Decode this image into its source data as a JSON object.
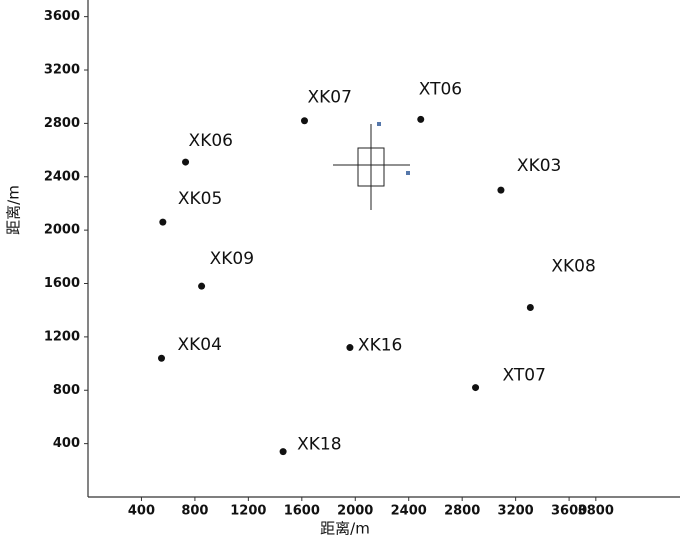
{
  "chart_data": {
    "type": "scatter",
    "x_label": "距离/m",
    "y_label": "距离/m",
    "labels": [
      "XK07",
      "XT06",
      "XK06",
      "XK03",
      "XK05",
      "XK09",
      "XK08",
      "XK04",
      "XK16",
      "XT07",
      "XK18"
    ],
    "x": [
      1620,
      2490,
      730,
      3090,
      560,
      850,
      3310,
      550,
      1960,
      2900,
      1460
    ],
    "y": [
      2820,
      2830,
      2510,
      2300,
      2060,
      1580,
      1420,
      1040,
      1120,
      820,
      340
    ],
    "color": "#111111",
    "xlim": [
      0,
      4400
    ],
    "ylim": [
      0,
      3700
    ],
    "xticks": [
      400,
      800,
      1200,
      1600,
      2000,
      2400,
      2800,
      3200,
      3600,
      3800
    ],
    "yticks": [
      400,
      800,
      1200,
      1600,
      2000,
      2400,
      2800,
      3200,
      3600
    ]
  }
}
